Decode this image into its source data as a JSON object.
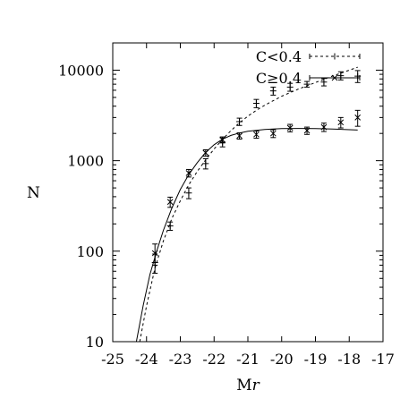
{
  "chart_data": {
    "type": "scatter",
    "title": "",
    "xlabel_main": "M",
    "xlabel_italic": "r",
    "ylabel": "N",
    "xlim": [
      -25,
      -17
    ],
    "ylim": [
      10,
      20000
    ],
    "yscale": "log",
    "grid": false,
    "legend_position": "top-right",
    "x_ticks": [
      "-25",
      "-24",
      "-23",
      "-22",
      "-21",
      "-20",
      "-19",
      "-18",
      "-17"
    ],
    "y_ticks": [
      "10",
      "100",
      "1000",
      "10000"
    ],
    "series": [
      {
        "name": "C<0.4",
        "line_style": "dotted",
        "marker": "+",
        "points": [
          {
            "x": -23.75,
            "y": 75,
            "err": 18
          },
          {
            "x": -23.3,
            "y": 190,
            "err": 20
          },
          {
            "x": -22.75,
            "y": 440,
            "err": 60
          },
          {
            "x": -22.25,
            "y": 930,
            "err": 120
          },
          {
            "x": -21.75,
            "y": 1600,
            "err": 180
          },
          {
            "x": -21.25,
            "y": 2700,
            "err": 250
          },
          {
            "x": -20.75,
            "y": 4300,
            "err": 450
          },
          {
            "x": -20.25,
            "y": 5900,
            "err": 600
          },
          {
            "x": -19.75,
            "y": 6500,
            "err": 650
          },
          {
            "x": -19.25,
            "y": 7000,
            "err": 500
          },
          {
            "x": -18.75,
            "y": 7400,
            "err": 700
          },
          {
            "x": -18.25,
            "y": 8700,
            "err": 900
          },
          {
            "x": -17.75,
            "y": 8600,
            "err": 1300
          }
        ],
        "fit": [
          {
            "x": -24.2,
            "y": 10
          },
          {
            "x": -24.0,
            "y": 25
          },
          {
            "x": -23.75,
            "y": 65
          },
          {
            "x": -23.5,
            "y": 130
          },
          {
            "x": -23.25,
            "y": 230
          },
          {
            "x": -23.0,
            "y": 360
          },
          {
            "x": -22.75,
            "y": 540
          },
          {
            "x": -22.5,
            "y": 760
          },
          {
            "x": -22.25,
            "y": 1020
          },
          {
            "x": -22.0,
            "y": 1350
          },
          {
            "x": -21.75,
            "y": 1720
          },
          {
            "x": -21.5,
            "y": 2150
          },
          {
            "x": -21.25,
            "y": 2620
          },
          {
            "x": -21.0,
            "y": 3100
          },
          {
            "x": -20.75,
            "y": 3600
          },
          {
            "x": -20.5,
            "y": 4100
          },
          {
            "x": -20.25,
            "y": 4600
          },
          {
            "x": -20.0,
            "y": 5150
          },
          {
            "x": -19.5,
            "y": 6200
          },
          {
            "x": -19.0,
            "y": 7300
          },
          {
            "x": -18.5,
            "y": 8600
          },
          {
            "x": -18.0,
            "y": 10000
          },
          {
            "x": -17.75,
            "y": 10800
          }
        ]
      },
      {
        "name": "C≥0.4",
        "line_style": "solid",
        "marker": "x",
        "points": [
          {
            "x": -23.75,
            "y": 95,
            "err": 25
          },
          {
            "x": -23.3,
            "y": 350,
            "err": 45
          },
          {
            "x": -22.75,
            "y": 730,
            "err": 70
          },
          {
            "x": -22.25,
            "y": 1220,
            "err": 100
          },
          {
            "x": -21.75,
            "y": 1700,
            "err": 130
          },
          {
            "x": -21.25,
            "y": 1880,
            "err": 150
          },
          {
            "x": -20.75,
            "y": 1950,
            "err": 180
          },
          {
            "x": -20.25,
            "y": 2000,
            "err": 200
          },
          {
            "x": -19.75,
            "y": 2300,
            "err": 220
          },
          {
            "x": -19.25,
            "y": 2150,
            "err": 200
          },
          {
            "x": -18.75,
            "y": 2350,
            "err": 250
          },
          {
            "x": -18.25,
            "y": 2650,
            "err": 350
          },
          {
            "x": -17.75,
            "y": 3000,
            "err": 600
          }
        ],
        "fit": [
          {
            "x": -24.3,
            "y": 10
          },
          {
            "x": -24.1,
            "y": 25
          },
          {
            "x": -23.9,
            "y": 55
          },
          {
            "x": -23.7,
            "y": 100
          },
          {
            "x": -23.5,
            "y": 170
          },
          {
            "x": -23.25,
            "y": 300
          },
          {
            "x": -23.0,
            "y": 480
          },
          {
            "x": -22.75,
            "y": 700
          },
          {
            "x": -22.5,
            "y": 950
          },
          {
            "x": -22.25,
            "y": 1230
          },
          {
            "x": -22.0,
            "y": 1500
          },
          {
            "x": -21.75,
            "y": 1730
          },
          {
            "x": -21.5,
            "y": 1900
          },
          {
            "x": -21.25,
            "y": 2020
          },
          {
            "x": -21.0,
            "y": 2110
          },
          {
            "x": -20.5,
            "y": 2210
          },
          {
            "x": -20.0,
            "y": 2260
          },
          {
            "x": -19.5,
            "y": 2270
          },
          {
            "x": -19.0,
            "y": 2260
          },
          {
            "x": -18.5,
            "y": 2240
          },
          {
            "x": -18.0,
            "y": 2200
          },
          {
            "x": -17.75,
            "y": 2180
          }
        ]
      }
    ]
  }
}
